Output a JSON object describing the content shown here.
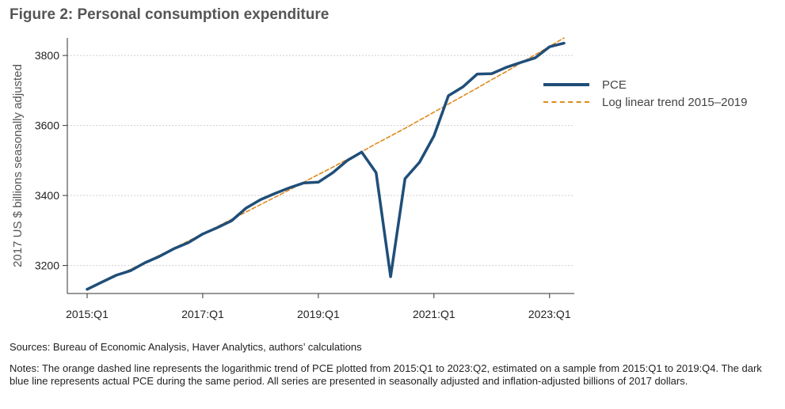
{
  "figure": {
    "title": "Figure 2: Personal consumption expenditure",
    "sources": "Sources: Bureau of Economic Analysis, Haver Analytics, authors’ calculations",
    "notes": "Notes: The orange dashed line represents the logarithmic trend of PCE plotted from 2015:Q1 to 2023:Q2, estimated on a sample from 2015:Q1 to 2019:Q4. The dark blue line represents actual PCE during the same period. All series are presented in seasonally adjusted and inflation-adjusted billions of 2017 dollars."
  },
  "colors": {
    "pce": "#1f4e79",
    "trend": "#e08a1e",
    "grid": "#cfcfcf",
    "axis": "#333333"
  },
  "chart_data": {
    "type": "line",
    "title": "Figure 2: Personal consumption expenditure",
    "xlabel": "",
    "ylabel": "2017 US $ billions seasonally adjusted",
    "x": [
      "2015:Q1",
      "2015:Q2",
      "2015:Q3",
      "2015:Q4",
      "2016:Q1",
      "2016:Q2",
      "2016:Q3",
      "2016:Q4",
      "2017:Q1",
      "2017:Q2",
      "2017:Q3",
      "2017:Q4",
      "2018:Q1",
      "2018:Q2",
      "2018:Q3",
      "2018:Q4",
      "2019:Q1",
      "2019:Q2",
      "2019:Q3",
      "2019:Q4",
      "2020:Q1",
      "2020:Q2",
      "2020:Q3",
      "2020:Q4",
      "2021:Q1",
      "2021:Q2",
      "2021:Q3",
      "2021:Q4",
      "2022:Q1",
      "2022:Q2",
      "2022:Q3",
      "2022:Q4",
      "2023:Q1",
      "2023:Q2"
    ],
    "x_ticks": [
      "2015:Q1",
      "2017:Q1",
      "2019:Q1",
      "2021:Q1",
      "2023:Q1"
    ],
    "y_ticks": [
      3200,
      3400,
      3600,
      3800
    ],
    "ylim": [
      3120,
      3850
    ],
    "grid": true,
    "legend_position": "right",
    "series": [
      {
        "name": "PCE",
        "style": "solid",
        "values": [
          3132,
          3152,
          3172,
          3185,
          3208,
          3226,
          3248,
          3265,
          3290,
          3308,
          3328,
          3364,
          3388,
          3406,
          3422,
          3436,
          3438,
          3465,
          3500,
          3524,
          3465,
          3168,
          3448,
          3495,
          3570,
          3685,
          3710,
          3747,
          3748,
          3766,
          3780,
          3793,
          3825,
          3835
        ]
      },
      {
        "name": "Log linear trend 2015–2019",
        "style": "dashed",
        "values": [
          3130,
          3150,
          3170,
          3189,
          3209,
          3229,
          3249,
          3270,
          3290,
          3311,
          3332,
          3353,
          3374,
          3395,
          3416,
          3438,
          3460,
          3481,
          3503,
          3525,
          3548,
          3570,
          3592,
          3615,
          3638,
          3661,
          3684,
          3707,
          3731,
          3754,
          3778,
          3802,
          3826,
          3850
        ]
      }
    ]
  }
}
